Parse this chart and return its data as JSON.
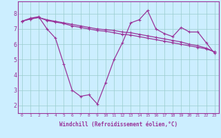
{
  "xlabel": "Windchill (Refroidissement éolien,°C)",
  "background_color": "#cceeff",
  "line_color": "#993399",
  "grid_color": "#99cccc",
  "x_values": [
    0,
    1,
    2,
    3,
    4,
    5,
    6,
    7,
    8,
    9,
    10,
    11,
    12,
    13,
    14,
    15,
    16,
    17,
    18,
    19,
    20,
    21,
    22,
    23
  ],
  "line1_y": [
    7.5,
    7.7,
    7.8,
    7.0,
    6.4,
    4.7,
    3.0,
    2.6,
    2.7,
    2.1,
    3.5,
    5.0,
    6.1,
    7.4,
    7.6,
    8.2,
    7.0,
    6.7,
    6.5,
    7.1,
    6.8,
    6.8,
    6.1,
    5.4
  ],
  "line2_y": [
    7.5,
    7.65,
    7.75,
    7.6,
    7.5,
    7.4,
    7.3,
    7.2,
    7.1,
    7.0,
    6.95,
    6.9,
    6.8,
    6.75,
    6.65,
    6.55,
    6.45,
    6.35,
    6.25,
    6.15,
    6.0,
    5.9,
    5.75,
    5.5
  ],
  "line3_y": [
    7.5,
    7.65,
    7.75,
    7.55,
    7.45,
    7.35,
    7.2,
    7.1,
    7.0,
    6.9,
    6.85,
    6.75,
    6.65,
    6.6,
    6.5,
    6.4,
    6.3,
    6.2,
    6.1,
    6.0,
    5.9,
    5.8,
    5.7,
    5.5
  ],
  "ylim": [
    1.5,
    8.8
  ],
  "yticks": [
    2,
    3,
    4,
    5,
    6,
    7,
    8
  ],
  "xticks": [
    0,
    1,
    2,
    3,
    4,
    5,
    6,
    7,
    8,
    9,
    10,
    11,
    12,
    13,
    14,
    15,
    16,
    17,
    18,
    19,
    20,
    21,
    22,
    23
  ]
}
